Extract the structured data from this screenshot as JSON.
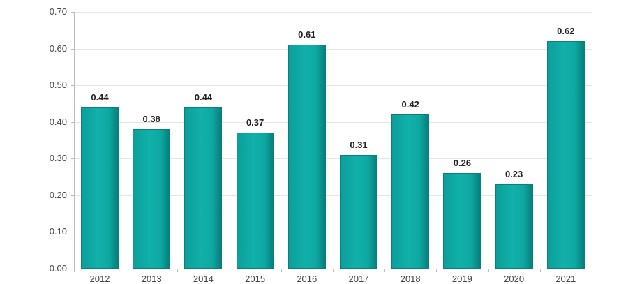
{
  "chart_data": {
    "type": "bar",
    "title": "",
    "xlabel": "",
    "ylabel": "",
    "categories": [
      "2012",
      "2013",
      "2014",
      "2015",
      "2016",
      "2017",
      "2018",
      "2019",
      "2020",
      "2021"
    ],
    "values": [
      0.44,
      0.38,
      0.44,
      0.37,
      0.61,
      0.31,
      0.42,
      0.26,
      0.23,
      0.62
    ],
    "value_labels": [
      "0.44",
      "0.38",
      "0.44",
      "0.37",
      "0.61",
      "0.31",
      "0.42",
      "0.26",
      "0.23",
      "0.62"
    ],
    "yticks": [
      "0.00",
      "0.10",
      "0.20",
      "0.30",
      "0.40",
      "0.50",
      "0.60",
      "0.70"
    ],
    "ylim": [
      0,
      0.7
    ],
    "grid": true,
    "legend": null,
    "bar_color": "#0fa9a4"
  }
}
